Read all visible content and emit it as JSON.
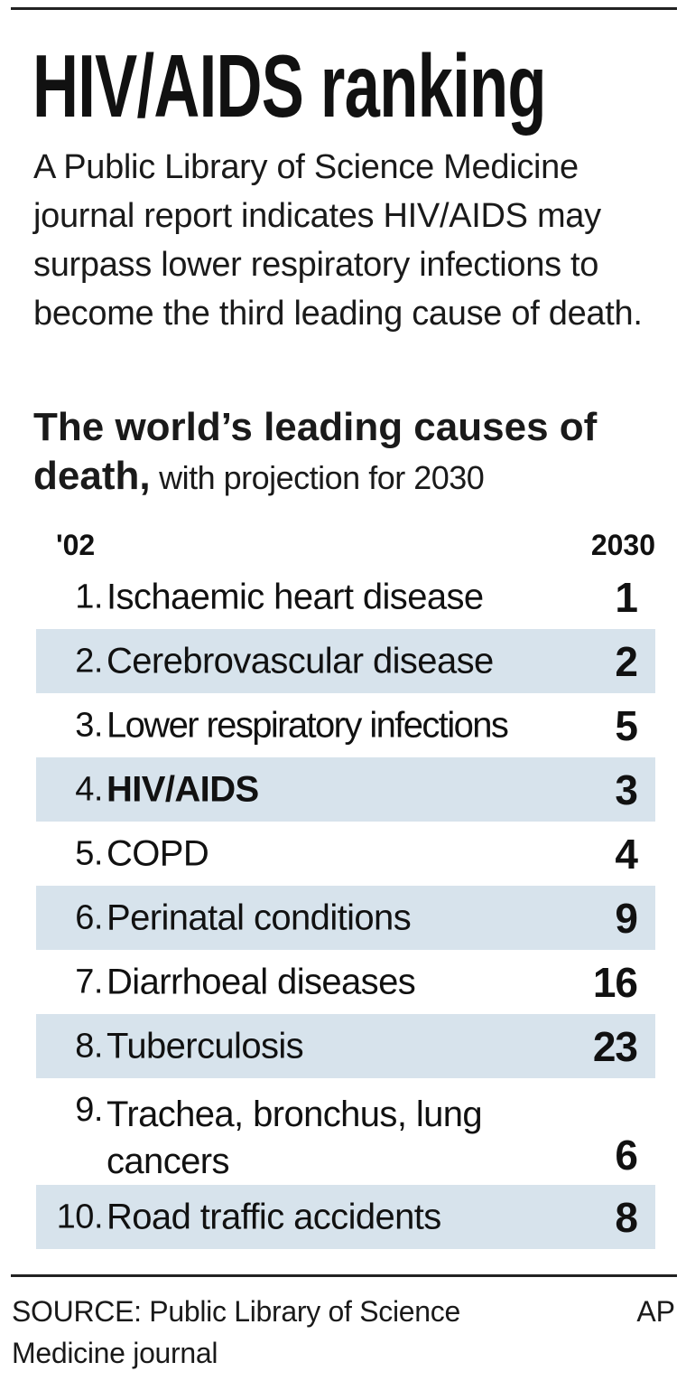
{
  "title": "HIV/AIDS ranking",
  "intro": "A Public Library of Science Medicine journal report indicates HIV/AIDS may surpass lower respiratory infections to become the third leading cause of death.",
  "subhead": {
    "bold": "The world’s leading causes of death,",
    "light": " with projection for 2030"
  },
  "columns": {
    "left": "'02",
    "right": "2030"
  },
  "rows": [
    {
      "rank": "1.",
      "name": "Ischaemic heart disease",
      "proj": "1"
    },
    {
      "rank": "2.",
      "name": "Cerebrovascular disease",
      "proj": "2"
    },
    {
      "rank": "3.",
      "name": "Lower respiratory infections",
      "proj": "5"
    },
    {
      "rank": "4.",
      "name": "HIV/AIDS",
      "proj": "3"
    },
    {
      "rank": "5.",
      "name": "COPD",
      "proj": "4"
    },
    {
      "rank": "6.",
      "name": "Perinatal conditions",
      "proj": "9"
    },
    {
      "rank": "7.",
      "name": "Diarrhoeal diseases",
      "proj": "16"
    },
    {
      "rank": "8.",
      "name": "Tuberculosis",
      "proj": "23"
    },
    {
      "rank": "9.",
      "name": "Trachea, bronchus, lung cancers",
      "proj": "6"
    },
    {
      "rank": "10.",
      "name": "Road traffic accidents",
      "proj": "8"
    }
  ],
  "source": "SOURCE: Public Library of Science Medicine journal",
  "credit": "AP",
  "colors": {
    "row_shade": "#d7e3ec"
  }
}
